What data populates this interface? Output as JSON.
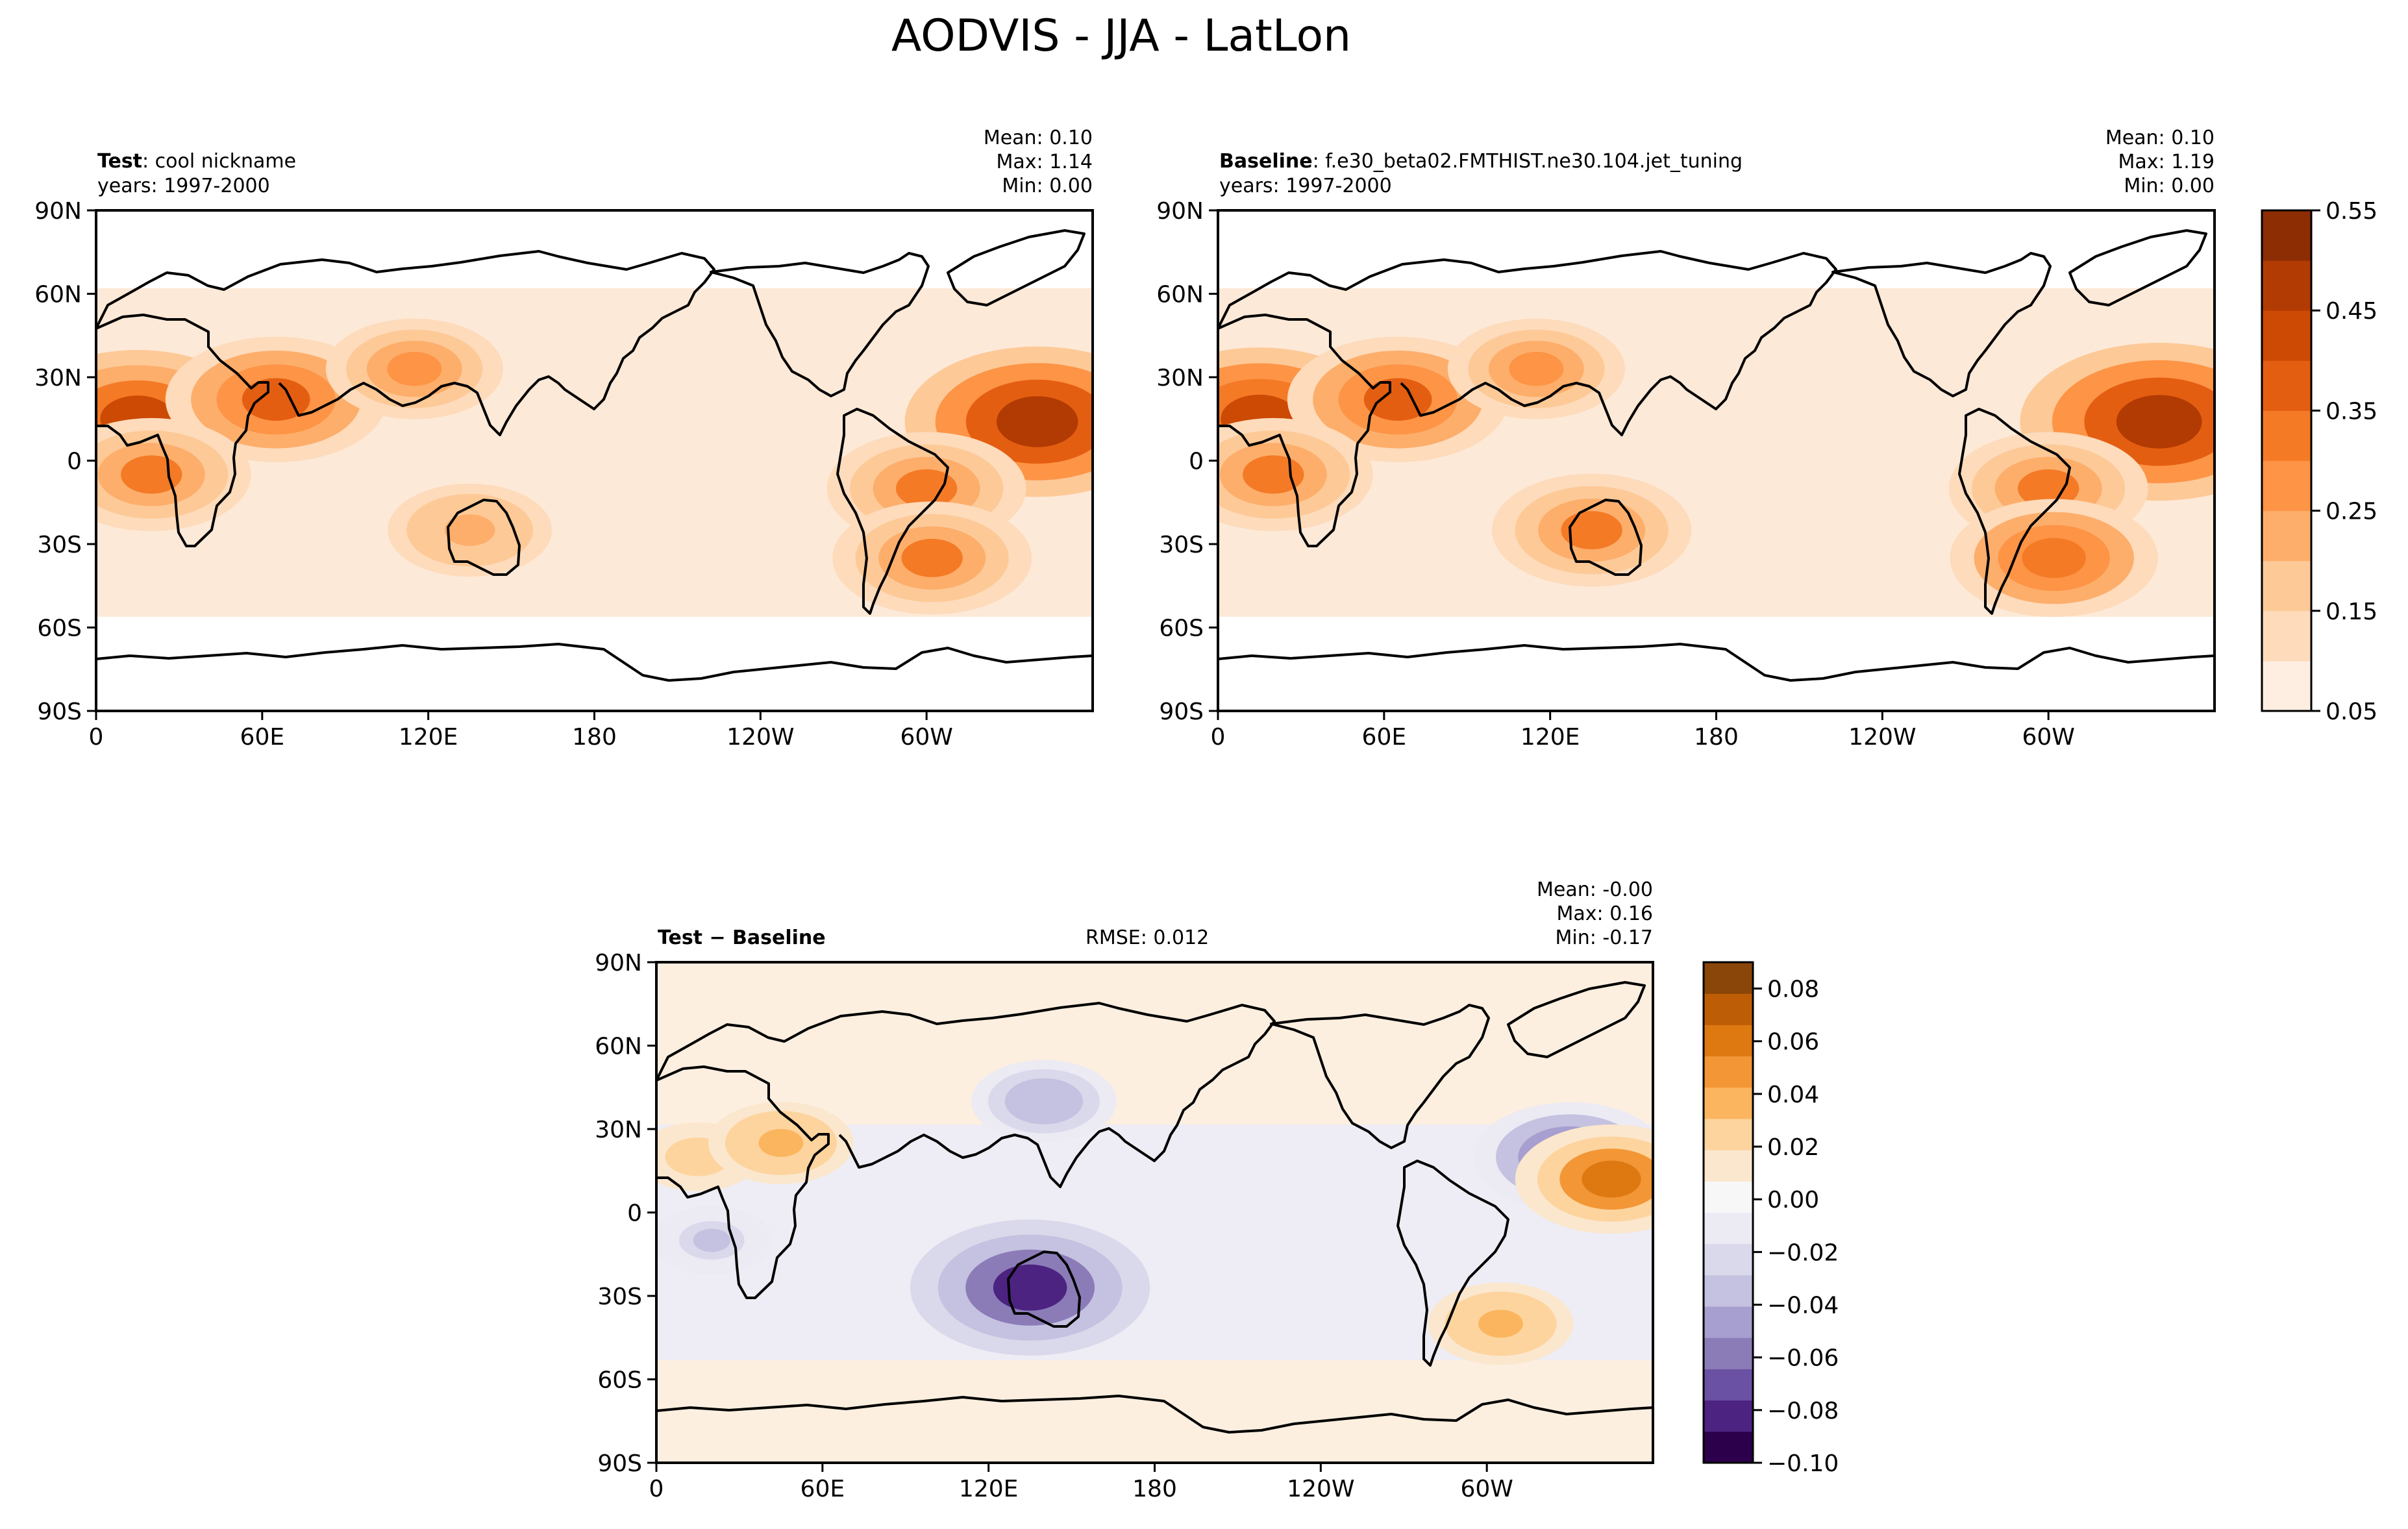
{
  "figure": {
    "title": "AODVIS - JJA - LatLon"
  },
  "panels": {
    "test": {
      "label_bold": "Test",
      "label_rest": ": cool nickname",
      "years": "years: 1997-2000",
      "stats": [
        "Mean:  0.10",
        "Max:  1.14",
        "Min:  0.00"
      ]
    },
    "baseline": {
      "label_bold": "Baseline",
      "label_rest": ": f.e30_beta02.FMTHIST.ne30.104.jet_tuning",
      "years": "years: 1997-2000",
      "stats": [
        "Mean:  0.10",
        "Max:  1.19",
        "Min:  0.00"
      ]
    },
    "diff": {
      "label_bold": "Test − Baseline",
      "rmse": "RMSE: 0.012",
      "stats": [
        "Mean: -0.00",
        "Max:  0.16",
        "Min: -0.17"
      ]
    }
  },
  "colors": {
    "ocean_low": "#fde9d7",
    "cbar_aod": [
      "#feeee2",
      "#fddbbb",
      "#fdc997",
      "#fdae6b",
      "#fd9446",
      "#f47a26",
      "#e45e12",
      "#cc4a04",
      "#b23b03",
      "#8c2d04"
    ],
    "cbar_diff": [
      "#2d004b",
      "#4c2380",
      "#6a51a3",
      "#8b7cb8",
      "#a79fcf",
      "#c4c2e0",
      "#dad9eb",
      "#eceaf3",
      "#f7f7f7",
      "#fbe7cd",
      "#fdd49e",
      "#fbb55f",
      "#f39635",
      "#de7811",
      "#bd5e06",
      "#8a4508"
    ]
  },
  "chart_data": [
    {
      "type": "heatmap",
      "name": "Test",
      "projection": "PlateCarree",
      "xlim": [
        0,
        360
      ],
      "ylim": [
        -90,
        90
      ],
      "x_ticks": [
        "0",
        "60E",
        "120E",
        "180",
        "120W",
        "60W"
      ],
      "y_ticks": [
        "90N",
        "60N",
        "30N",
        "0",
        "30S",
        "60S",
        "90S"
      ],
      "colorbar": {
        "range": [
          0.05,
          0.55
        ],
        "ticks": [
          "0.55",
          "0.45",
          "0.35",
          "0.25",
          "0.15",
          "0.05"
        ]
      },
      "hotspots": [
        {
          "lon": 15,
          "lat": 15,
          "value": 0.4
        },
        {
          "lon": 65,
          "lat": 22,
          "value": 0.35
        },
        {
          "lon": 340,
          "lat": 14,
          "value": 0.45
        },
        {
          "lon": 300,
          "lat": -10,
          "value": 0.3
        },
        {
          "lon": 20,
          "lat": -5,
          "value": 0.3
        },
        {
          "lon": 115,
          "lat": 33,
          "value": 0.25
        },
        {
          "lon": 302,
          "lat": -35,
          "value": 0.3
        },
        {
          "lon": 135,
          "lat": -25,
          "value": 0.22
        }
      ]
    },
    {
      "type": "heatmap",
      "name": "Baseline",
      "projection": "PlateCarree",
      "xlim": [
        0,
        360
      ],
      "ylim": [
        -90,
        90
      ],
      "x_ticks": [
        "0",
        "60E",
        "120E",
        "180",
        "120W",
        "60W"
      ],
      "y_ticks": [
        "90N",
        "60N",
        "30N",
        "0",
        "30S",
        "60S",
        "90S"
      ],
      "colorbar": {
        "range": [
          0.05,
          0.55
        ],
        "ticks": [
          "0.55",
          "0.45",
          "0.35",
          "0.25",
          "0.15",
          "0.05"
        ]
      },
      "hotspots": [
        {
          "lon": 15,
          "lat": 15,
          "value": 0.42
        },
        {
          "lon": 65,
          "lat": 22,
          "value": 0.35
        },
        {
          "lon": 340,
          "lat": 14,
          "value": 0.48
        },
        {
          "lon": 300,
          "lat": -10,
          "value": 0.3
        },
        {
          "lon": 20,
          "lat": -5,
          "value": 0.3
        },
        {
          "lon": 115,
          "lat": 33,
          "value": 0.25
        },
        {
          "lon": 302,
          "lat": -35,
          "value": 0.32
        },
        {
          "lon": 135,
          "lat": -25,
          "value": 0.3
        }
      ]
    },
    {
      "type": "heatmap",
      "name": "Test − Baseline",
      "projection": "PlateCarree",
      "xlim": [
        0,
        360
      ],
      "ylim": [
        -90,
        90
      ],
      "x_ticks": [
        "0",
        "60E",
        "120E",
        "180",
        "120W",
        "60W"
      ],
      "y_ticks": [
        "90N",
        "60N",
        "30N",
        "0",
        "30S",
        "60S",
        "90S"
      ],
      "colorbar": {
        "range": [
          -0.1,
          0.09
        ],
        "ticks": [
          "0.08",
          "0.06",
          "0.04",
          "0.02",
          "0.00",
          "−0.02",
          "−0.04",
          "−0.06",
          "−0.08",
          "−0.10"
        ]
      },
      "hotspots": [
        {
          "lon": 15,
          "lat": 20,
          "value": 0.03
        },
        {
          "lon": 45,
          "lat": 25,
          "value": 0.04
        },
        {
          "lon": 330,
          "lat": 20,
          "value": -0.06
        },
        {
          "lon": 345,
          "lat": 12,
          "value": 0.06
        },
        {
          "lon": 135,
          "lat": -27,
          "value": -0.08
        },
        {
          "lon": 305,
          "lat": -40,
          "value": 0.04
        },
        {
          "lon": 140,
          "lat": 40,
          "value": -0.04
        },
        {
          "lon": 20,
          "lat": -10,
          "value": -0.03
        }
      ]
    }
  ]
}
